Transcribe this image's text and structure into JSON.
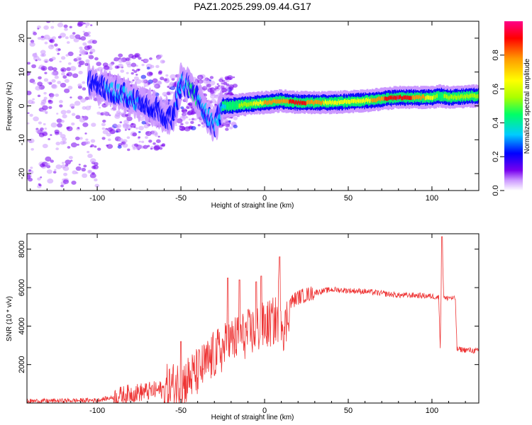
{
  "title": "PAZ1.2025.299.09.44.G17",
  "chart_data": [
    {
      "type": "heatmap",
      "xlabel": "Height of straight line (km)",
      "ylabel": "Frequency (Hz)",
      "xlim": [
        -142,
        128
      ],
      "ylim": [
        -25,
        25
      ],
      "xticks": [
        "-100",
        "-50",
        "0",
        "50",
        "100"
      ],
      "yticks": [
        "-20",
        "-10",
        "0",
        "10",
        "20"
      ],
      "colorbar": {
        "label": "Normalized spectral amplitude",
        "range": [
          0,
          1
        ],
        "ticks": [
          "0.0",
          "0.2",
          "0.4",
          "0.6",
          "0.8"
        ],
        "colors": [
          "#ffffff",
          "#cc99ff",
          "#7700ee",
          "#0000ff",
          "#00ccff",
          "#00ff66",
          "#aaff00",
          "#ffff00",
          "#ff9900",
          "#ff0000",
          "#ff0088"
        ]
      },
      "ridge": {
        "x": [
          -105,
          -95,
          -85,
          -75,
          -65,
          -55,
          -50,
          -45,
          -40,
          -35,
          -30,
          -25,
          -20,
          -10,
          0,
          10,
          20,
          40,
          60,
          80,
          100,
          105,
          110,
          128
        ],
        "y": [
          7,
          5,
          3.5,
          1,
          -1,
          -4,
          7,
          6,
          2,
          -2,
          -6,
          0,
          0,
          0.5,
          1,
          1.5,
          1,
          1,
          1.5,
          2.5,
          2.5,
          3,
          2.5,
          3
        ],
        "peak_amplitude": [
          0.3,
          0.35,
          0.4,
          0.35,
          0.3,
          0.3,
          0.4,
          0.45,
          0.45,
          0.4,
          0.35,
          0.4,
          0.5,
          0.6,
          0.75,
          0.8,
          0.9,
          0.7,
          0.7,
          0.95,
          0.7,
          0.5,
          0.6,
          0.6
        ]
      }
    },
    {
      "type": "line",
      "xlabel": "Height of straight line (km)",
      "ylabel": "SNR (10 * v/v)",
      "xlim": [
        -142,
        128
      ],
      "ylim": [
        0,
        8800
      ],
      "xticks": [
        "-100",
        "-50",
        "0",
        "50",
        "100"
      ],
      "yticks": [
        "2000",
        "4000",
        "6000",
        "8000"
      ],
      "series": [
        {
          "name": "SNR",
          "color": "#ee3333",
          "x": [
            -142,
            -120,
            -100,
            -90,
            -80,
            -70,
            -60,
            -50,
            -40,
            -35,
            -30,
            -25,
            -20,
            -15,
            -10,
            -5,
            0,
            5,
            8,
            9,
            10,
            12,
            15,
            20,
            30,
            40,
            50,
            60,
            70,
            80,
            90,
            100,
            104,
            105,
            106,
            107,
            108,
            110,
            114,
            115,
            128
          ],
          "y": [
            100,
            120,
            150,
            300,
            500,
            600,
            700,
            1000,
            1600,
            2000,
            2500,
            2800,
            3200,
            3400,
            3600,
            3800,
            4000,
            4200,
            4400,
            7600,
            4500,
            3700,
            5200,
            5500,
            5750,
            5900,
            5850,
            5800,
            5700,
            5600,
            5600,
            5550,
            5500,
            3000,
            8600,
            5600,
            5400,
            5500,
            5400,
            2800,
            2700
          ],
          "spikes": [
            {
              "x": -50,
              "y": 3200
            },
            {
              "x": -22,
              "y": 6500
            },
            {
              "x": -15,
              "y": 6400
            },
            {
              "x": -5,
              "y": 6300
            },
            {
              "x": -2,
              "y": 6600
            },
            {
              "x": 9,
              "y": 7600
            },
            {
              "x": 106,
              "y": 8650
            }
          ]
        }
      ]
    }
  ]
}
